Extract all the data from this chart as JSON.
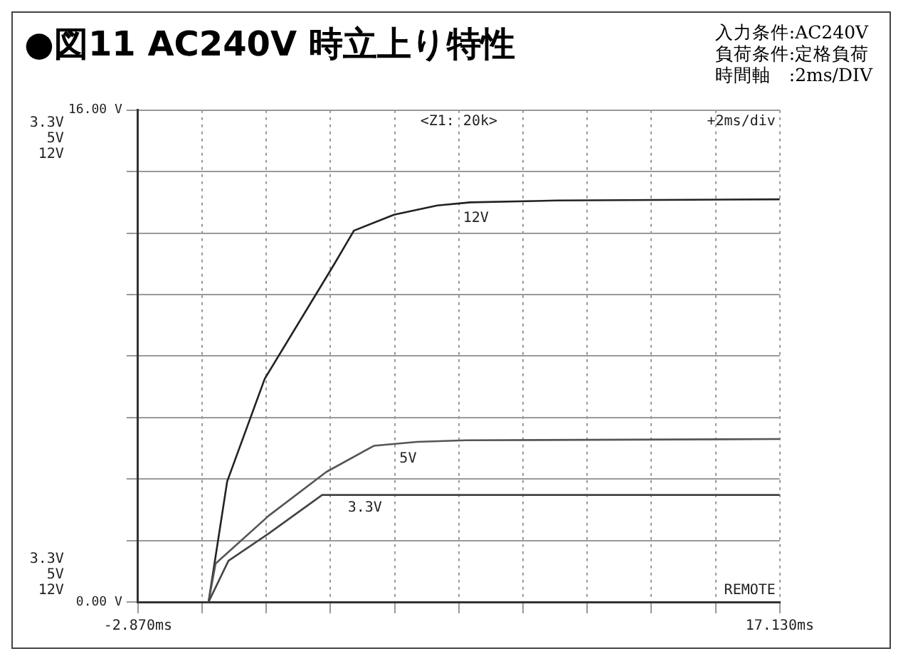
{
  "chart_data": {
    "type": "line",
    "title": "●図11 AC240V 時立上り特性",
    "annotations": [
      "入力条件:AC240V",
      "負荷条件:定格負荷",
      "時間軸　:2ms/DIV",
      "<Z1: 20k>",
      "+2ms/div",
      "REMOTE"
    ],
    "xlim": [
      -2.87,
      17.13
    ],
    "xticks": [
      {
        "value": -2.87,
        "label": "-2.870ms"
      },
      {
        "value": -0.87,
        "label": null
      },
      {
        "value": 1.13,
        "label": null
      },
      {
        "value": 3.13,
        "label": null
      },
      {
        "value": 5.13,
        "label": null
      },
      {
        "value": 7.13,
        "label": null
      },
      {
        "value": 9.13,
        "label": null
      },
      {
        "value": 11.13,
        "label": null
      },
      {
        "value": 13.13,
        "label": null
      },
      {
        "value": 15.13,
        "label": null
      },
      {
        "value": 17.13,
        "label": "17.130ms"
      }
    ],
    "ylim": [
      0,
      16
    ],
    "yticks": [
      {
        "value": 0,
        "label": "0.00 V"
      },
      {
        "value": 2,
        "label": null
      },
      {
        "value": 4,
        "label": null
      },
      {
        "value": 6,
        "label": null
      },
      {
        "value": 8,
        "label": null
      },
      {
        "value": 10,
        "label": null
      },
      {
        "value": 12,
        "label": null
      },
      {
        "value": 14,
        "label": null
      },
      {
        "value": 16,
        "label": "16.00 V"
      }
    ],
    "grid": true,
    "legend": false,
    "marker": "none",
    "line_style": "solid",
    "series": [
      {
        "name": "3.3V",
        "color": "#444444",
        "x": [
          -0.67,
          -0.05,
          1.21,
          2.87,
          3.23,
          17.13
        ],
        "values": [
          0,
          1.34,
          2.23,
          3.48,
          3.48,
          3.48
        ]
      },
      {
        "name": "5V",
        "color": "#555555",
        "x": [
          -0.67,
          -0.45,
          1.21,
          3.0,
          4.48,
          5.83,
          7.35,
          17.13
        ],
        "values": [
          0,
          1.25,
          2.81,
          4.23,
          5.08,
          5.21,
          5.26,
          5.3
        ]
      },
      {
        "name": "12V",
        "color": "#222222",
        "x": [
          -0.67,
          -0.09,
          1.08,
          3.23,
          3.86,
          5.11,
          6.46,
          7.49,
          10.18,
          17.13
        ],
        "values": [
          0,
          3.92,
          7.26,
          10.96,
          12.08,
          12.6,
          12.9,
          13.0,
          13.06,
          13.1
        ]
      }
    ]
  }
}
